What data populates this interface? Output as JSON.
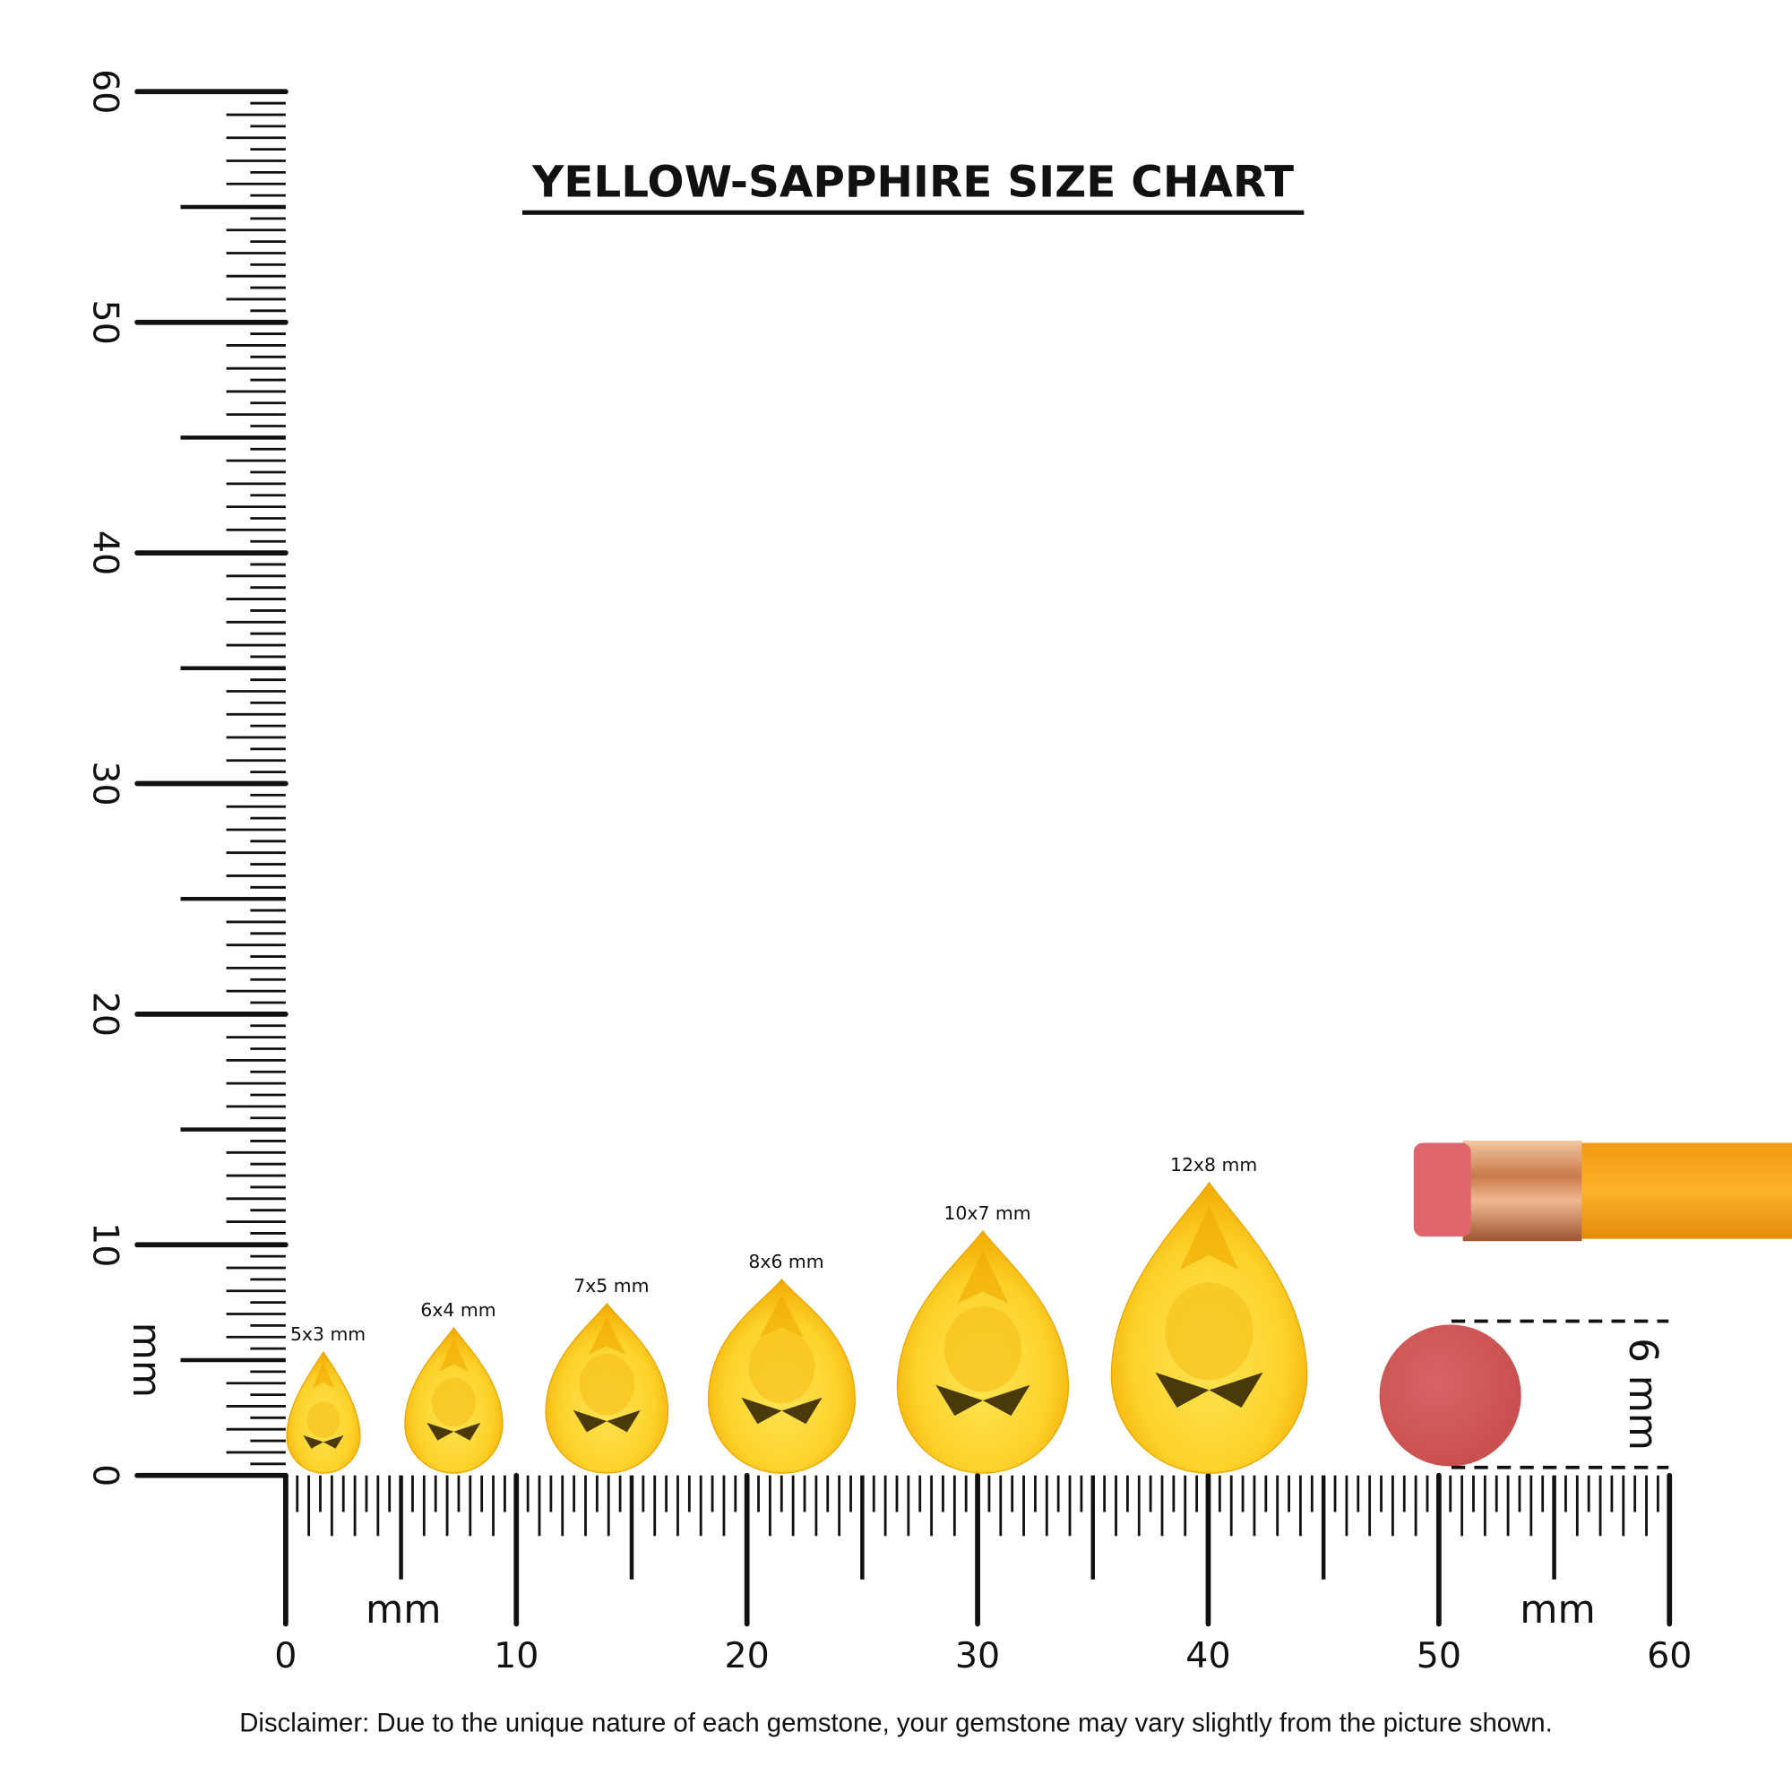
{
  "title": "YELLOW-SAPPHIRE SIZE CHART",
  "disclaimer": "Disclaimer: Due to the unique nature of each gemstone, your gemstone may vary slightly from the picture shown.",
  "ruler": {
    "unit": "mm",
    "range_mm": [
      0,
      60
    ],
    "horizontal_labels": [
      "0",
      "10",
      "20",
      "30",
      "40",
      "50",
      "60"
    ],
    "vertical_labels": [
      "0",
      "10",
      "20",
      "30",
      "40",
      "50",
      "60"
    ]
  },
  "gems": [
    {
      "label": "5x3 mm",
      "length_mm": 5,
      "width_mm": 3
    },
    {
      "label": "6x4 mm",
      "length_mm": 6,
      "width_mm": 4
    },
    {
      "label": "7x5 mm",
      "length_mm": 7,
      "width_mm": 5
    },
    {
      "label": "8x6 mm",
      "length_mm": 8,
      "width_mm": 6
    },
    {
      "label": "10x7 mm",
      "length_mm": 10,
      "width_mm": 7
    },
    {
      "label": "12x8 mm",
      "length_mm": 12,
      "width_mm": 8
    }
  ],
  "reference": {
    "label": "6 mm",
    "eraser_color": "#d35a5c"
  },
  "colors": {
    "gem_light": "#ffe556",
    "gem_dark": "#f2aa00",
    "pencil_body": "#f7a21b",
    "eraser": "#e0656c",
    "ferrule": "#d8905c"
  }
}
